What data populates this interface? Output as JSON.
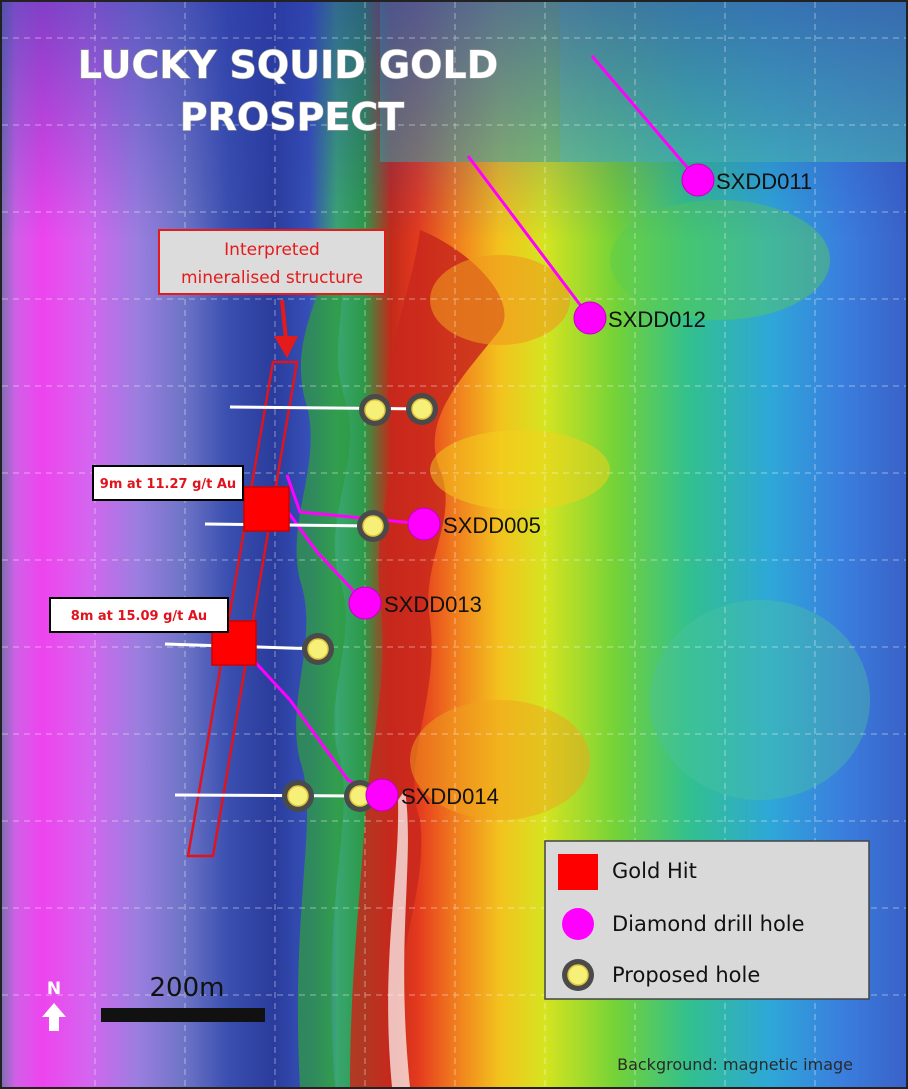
{
  "title": {
    "line1": "LUCKY SQUID GOLD",
    "line2": "PROSPECT"
  },
  "callout": {
    "line1": "Interpreted",
    "line2": "mineralised structure"
  },
  "gold_hits": [
    {
      "label": "9m at 11.27 g/t Au"
    },
    {
      "label": "8m at 15.09 g/t Au"
    }
  ],
  "drill_holes": [
    {
      "id": "SXDD011"
    },
    {
      "id": "SXDD012"
    },
    {
      "id": "SXDD005"
    },
    {
      "id": "SXDD013"
    },
    {
      "id": "SXDD014"
    }
  ],
  "legend": {
    "gold_hit": "Gold Hit",
    "diamond_drill_hole": "Diamond drill hole",
    "proposed_hole": "Proposed hole"
  },
  "scale_bar": {
    "label": "200m"
  },
  "north_arrow": {
    "label": "N"
  },
  "background_note": "Background: magnetic image",
  "colors": {
    "gold_hit": "#ff0000",
    "diamond_drill_hole": "#ff00ff",
    "proposed_hole_fill": "#f6f078",
    "proposed_hole_ring": "#4a4a4a"
  }
}
